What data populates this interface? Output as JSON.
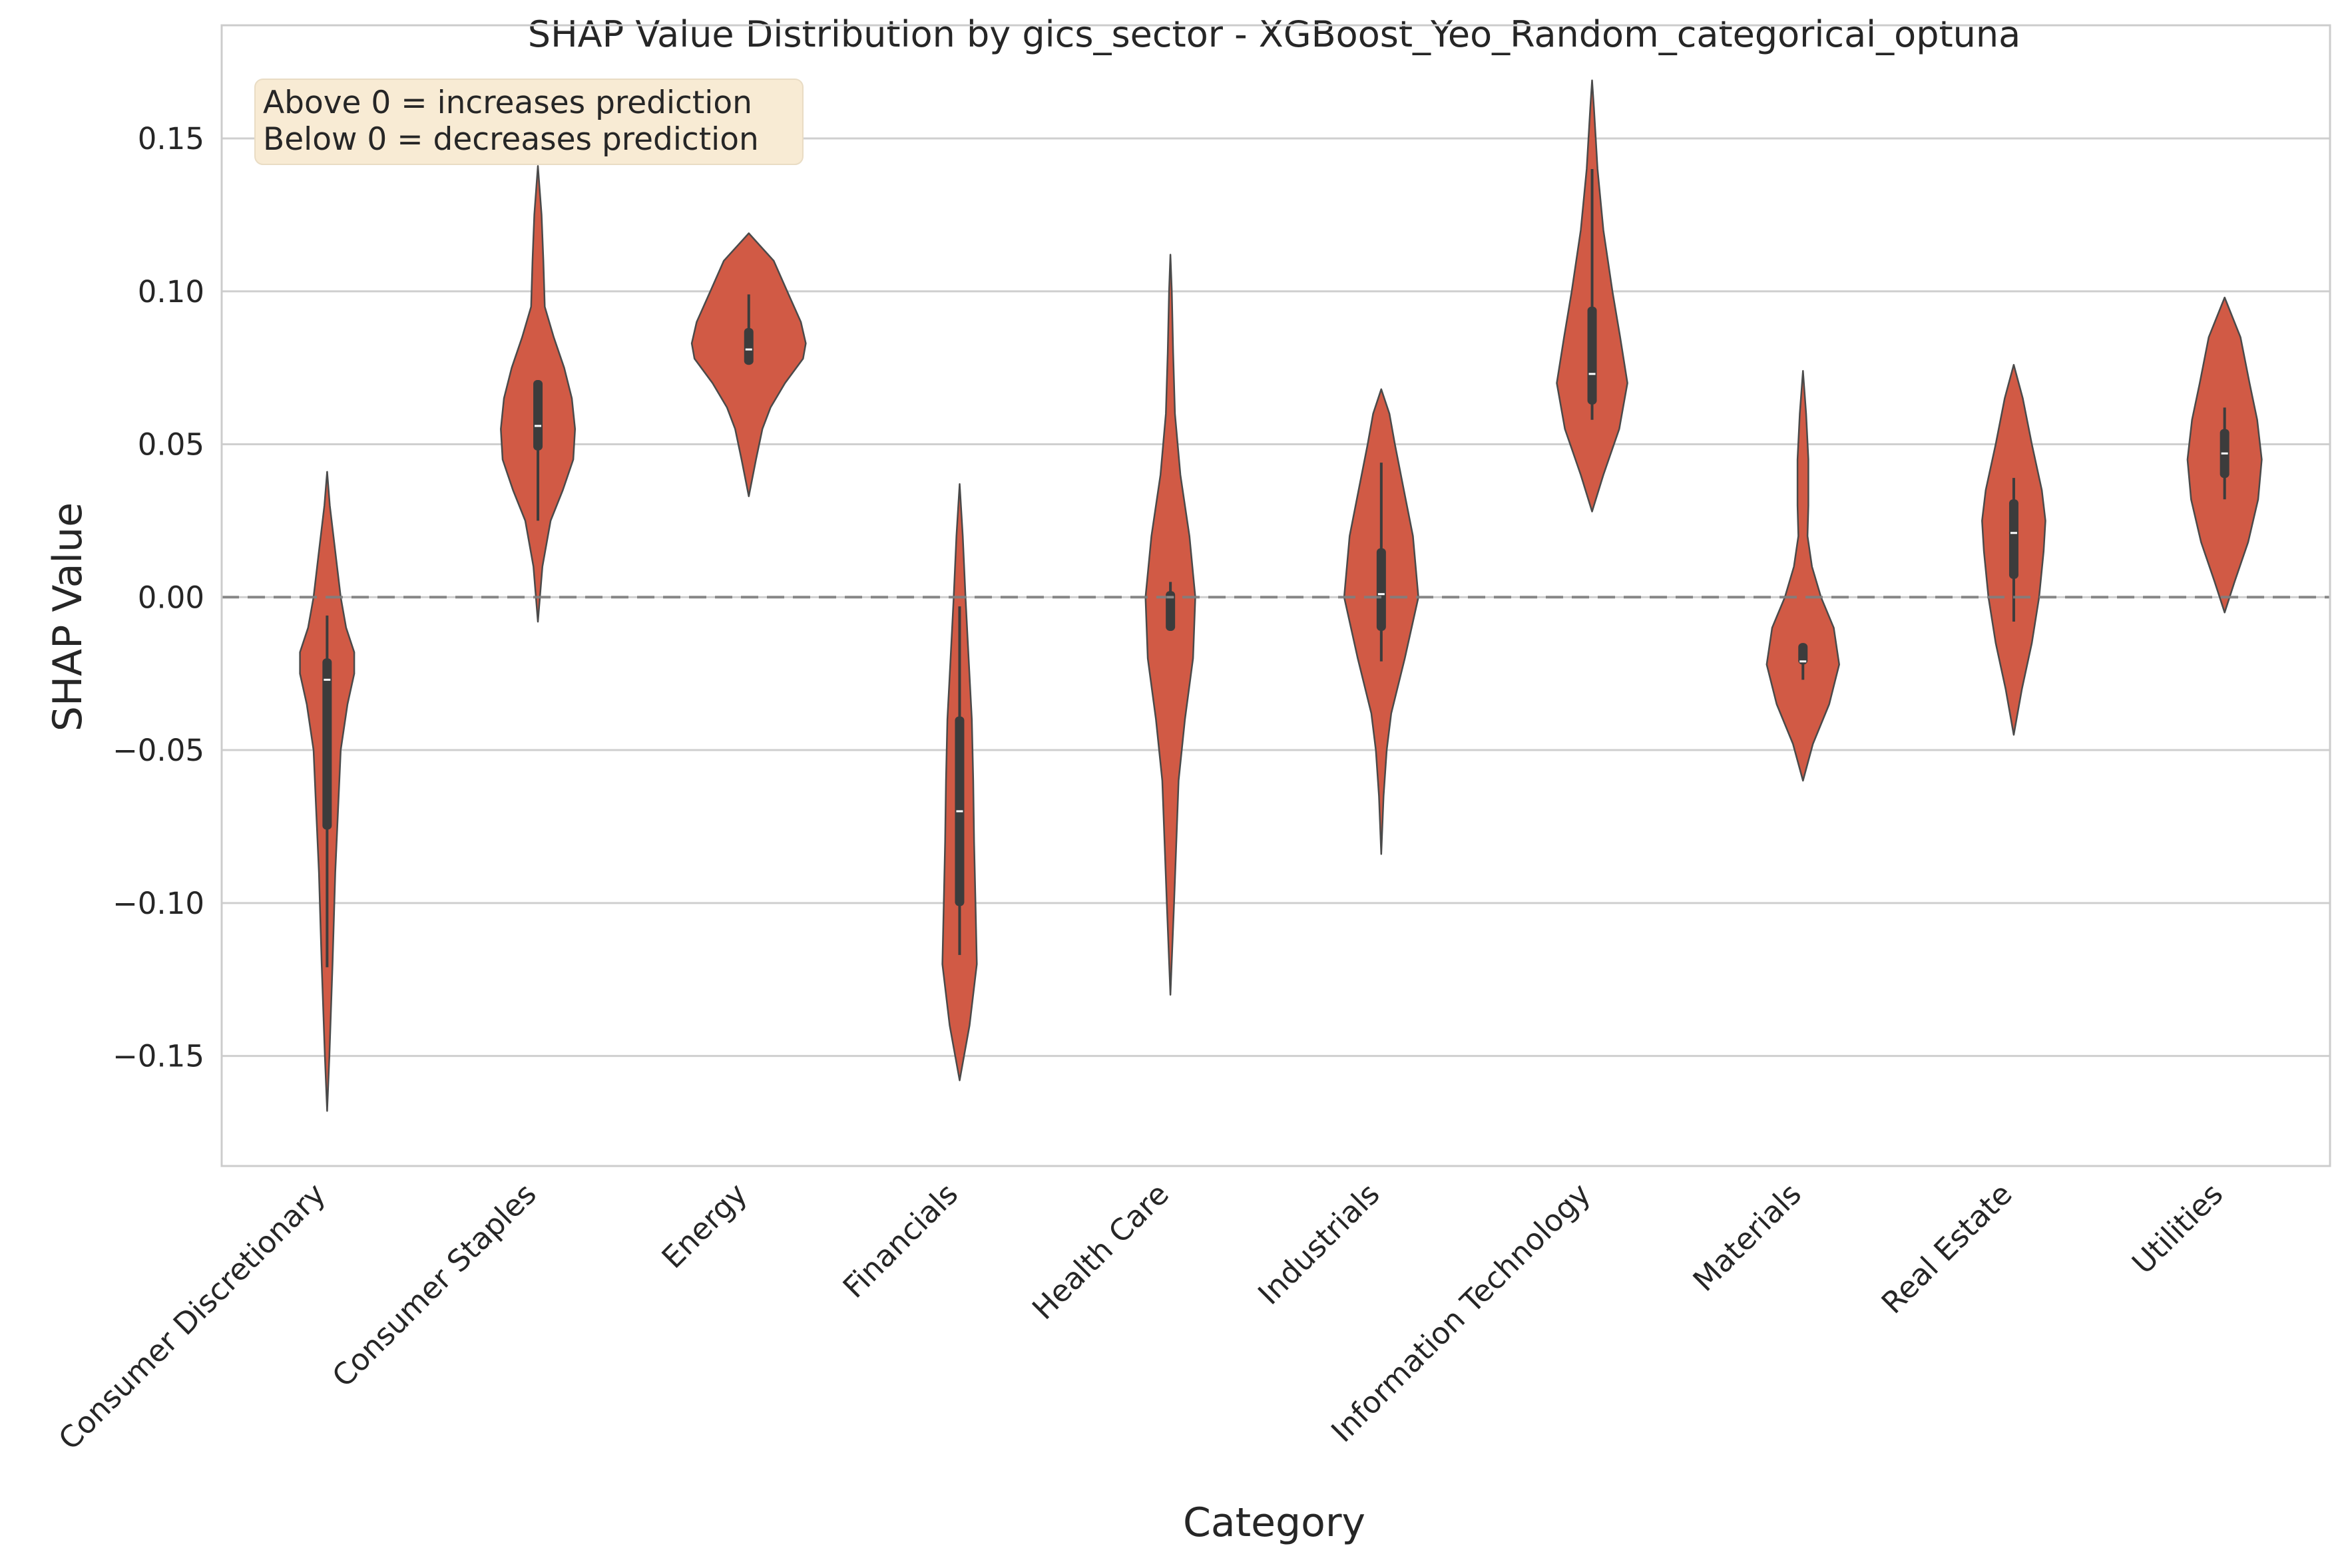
{
  "chart_data": {
    "type": "violin",
    "title": "SHAP Value Distribution by gics_sector - XGBoost_Yeo_Random_categorical_optuna",
    "xlabel": "Category",
    "ylabel": "SHAP Value",
    "ylim": [
      -0.186,
      0.187
    ],
    "yticks": [
      0.15,
      0.1,
      0.05,
      0.0,
      -0.05,
      -0.1,
      -0.15
    ],
    "ytick_labels": [
      "0.15",
      "0.10",
      "0.05",
      "0.00",
      "−0.05",
      "−0.10",
      "−0.15"
    ],
    "grid": "horizontal",
    "reference_line": 0.0,
    "annotation": [
      "Above 0 = increases prediction",
      "Below 0 = decreases prediction"
    ],
    "colors": {
      "violin_fill": "#d15a45",
      "violin_edge": "#4a4a4a",
      "box": "#3c3c3c",
      "grid": "#cfcfcf",
      "reference": "#7f7f7f",
      "annotation_bg": "#f8ebd4"
    },
    "categories": [
      {
        "name": "Consumer Discretionary",
        "min": -0.168,
        "max": 0.041,
        "q1": -0.076,
        "median": -0.027,
        "q3": -0.02,
        "whisker_low": -0.121,
        "whisker_high": -0.006,
        "density": [
          [
            -0.168,
            0.0
          ],
          [
            -0.15,
            0.005
          ],
          [
            -0.12,
            0.012
          ],
          [
            -0.09,
            0.018
          ],
          [
            -0.07,
            0.024
          ],
          [
            -0.05,
            0.03
          ],
          [
            -0.035,
            0.045
          ],
          [
            -0.025,
            0.06
          ],
          [
            -0.018,
            0.06
          ],
          [
            -0.01,
            0.042
          ],
          [
            0.0,
            0.03
          ],
          [
            0.015,
            0.018
          ],
          [
            0.03,
            0.006
          ],
          [
            0.041,
            0.0
          ]
        ]
      },
      {
        "name": "Consumer Staples",
        "min": -0.008,
        "max": 0.141,
        "q1": 0.048,
        "median": 0.056,
        "q3": 0.071,
        "whisker_low": 0.025,
        "whisker_high": 0.071,
        "density": [
          [
            -0.008,
            0.0
          ],
          [
            0.01,
            0.01
          ],
          [
            0.025,
            0.028
          ],
          [
            0.035,
            0.055
          ],
          [
            0.045,
            0.078
          ],
          [
            0.055,
            0.082
          ],
          [
            0.065,
            0.075
          ],
          [
            0.075,
            0.058
          ],
          [
            0.085,
            0.035
          ],
          [
            0.095,
            0.015
          ],
          [
            0.11,
            0.012
          ],
          [
            0.125,
            0.008
          ],
          [
            0.141,
            0.0
          ]
        ]
      },
      {
        "name": "Energy",
        "min": 0.033,
        "max": 0.119,
        "q1": 0.076,
        "median": 0.081,
        "q3": 0.088,
        "whisker_low": 0.076,
        "whisker_high": 0.099,
        "density": [
          [
            0.033,
            0.0
          ],
          [
            0.045,
            0.016
          ],
          [
            0.055,
            0.03
          ],
          [
            0.062,
            0.048
          ],
          [
            0.07,
            0.08
          ],
          [
            0.078,
            0.12
          ],
          [
            0.083,
            0.126
          ],
          [
            0.09,
            0.115
          ],
          [
            0.1,
            0.085
          ],
          [
            0.11,
            0.055
          ],
          [
            0.119,
            0.0
          ]
        ]
      },
      {
        "name": "Financials",
        "min": -0.158,
        "max": 0.037,
        "q1": -0.101,
        "median": -0.07,
        "q3": -0.039,
        "whisker_low": -0.117,
        "whisker_high": -0.003,
        "density": [
          [
            -0.158,
            0.0
          ],
          [
            -0.14,
            0.022
          ],
          [
            -0.12,
            0.038
          ],
          [
            -0.1,
            0.035
          ],
          [
            -0.08,
            0.032
          ],
          [
            -0.06,
            0.03
          ],
          [
            -0.04,
            0.027
          ],
          [
            -0.02,
            0.02
          ],
          [
            0.0,
            0.013
          ],
          [
            0.02,
            0.007
          ],
          [
            0.037,
            0.0
          ]
        ]
      },
      {
        "name": "Health Care",
        "min": -0.13,
        "max": 0.112,
        "q1": -0.011,
        "median": 0.0,
        "q3": 0.002,
        "whisker_low": -0.011,
        "whisker_high": 0.005,
        "density": [
          [
            -0.13,
            0.0
          ],
          [
            -0.1,
            0.008
          ],
          [
            -0.06,
            0.018
          ],
          [
            -0.04,
            0.032
          ],
          [
            -0.02,
            0.05
          ],
          [
            0.0,
            0.055
          ],
          [
            0.02,
            0.042
          ],
          [
            0.04,
            0.022
          ],
          [
            0.06,
            0.01
          ],
          [
            0.08,
            0.006
          ],
          [
            0.1,
            0.003
          ],
          [
            0.112,
            0.0
          ]
        ]
      },
      {
        "name": "Industrials",
        "min": -0.084,
        "max": 0.068,
        "q1": -0.011,
        "median": 0.001,
        "q3": 0.016,
        "whisker_low": -0.021,
        "whisker_high": 0.044,
        "density": [
          [
            -0.084,
            0.0
          ],
          [
            -0.065,
            0.005
          ],
          [
            -0.05,
            0.012
          ],
          [
            -0.038,
            0.022
          ],
          [
            -0.02,
            0.052
          ],
          [
            0.0,
            0.082
          ],
          [
            0.02,
            0.07
          ],
          [
            0.035,
            0.05
          ],
          [
            0.05,
            0.03
          ],
          [
            0.06,
            0.018
          ],
          [
            0.068,
            0.0
          ]
        ]
      },
      {
        "name": "Information Technology",
        "min": 0.028,
        "max": 0.169,
        "q1": 0.063,
        "median": 0.073,
        "q3": 0.095,
        "whisker_low": 0.058,
        "whisker_high": 0.14,
        "density": [
          [
            0.028,
            0.0
          ],
          [
            0.04,
            0.025
          ],
          [
            0.055,
            0.06
          ],
          [
            0.07,
            0.078
          ],
          [
            0.085,
            0.062
          ],
          [
            0.1,
            0.045
          ],
          [
            0.12,
            0.025
          ],
          [
            0.14,
            0.012
          ],
          [
            0.16,
            0.004
          ],
          [
            0.169,
            0.0
          ]
        ]
      },
      {
        "name": "Materials",
        "min": -0.06,
        "max": 0.074,
        "q1": -0.022,
        "median": -0.021,
        "q3": -0.015,
        "whisker_low": -0.027,
        "whisker_high": -0.015,
        "density": [
          [
            -0.06,
            0.0
          ],
          [
            -0.048,
            0.022
          ],
          [
            -0.035,
            0.058
          ],
          [
            -0.022,
            0.08
          ],
          [
            -0.01,
            0.068
          ],
          [
            0.0,
            0.04
          ],
          [
            0.01,
            0.02
          ],
          [
            0.02,
            0.01
          ],
          [
            0.03,
            0.012
          ],
          [
            0.045,
            0.012
          ],
          [
            0.06,
            0.007
          ],
          [
            0.074,
            0.0
          ]
        ]
      },
      {
        "name": "Real Estate",
        "min": -0.045,
        "max": 0.076,
        "q1": 0.006,
        "median": 0.021,
        "q3": 0.032,
        "whisker_low": -0.008,
        "whisker_high": 0.039,
        "density": [
          [
            -0.045,
            0.0
          ],
          [
            -0.03,
            0.018
          ],
          [
            -0.015,
            0.04
          ],
          [
            0.0,
            0.056
          ],
          [
            0.015,
            0.066
          ],
          [
            0.025,
            0.07
          ],
          [
            0.035,
            0.062
          ],
          [
            0.05,
            0.04
          ],
          [
            0.065,
            0.02
          ],
          [
            0.076,
            0.0
          ]
        ]
      },
      {
        "name": "Utilities",
        "min": -0.005,
        "max": 0.098,
        "q1": 0.039,
        "median": 0.047,
        "q3": 0.055,
        "whisker_low": 0.032,
        "whisker_high": 0.062,
        "density": [
          [
            -0.005,
            0.0
          ],
          [
            0.005,
            0.022
          ],
          [
            0.018,
            0.052
          ],
          [
            0.032,
            0.074
          ],
          [
            0.045,
            0.082
          ],
          [
            0.058,
            0.072
          ],
          [
            0.07,
            0.055
          ],
          [
            0.085,
            0.035
          ],
          [
            0.098,
            0.0
          ]
        ]
      }
    ]
  }
}
